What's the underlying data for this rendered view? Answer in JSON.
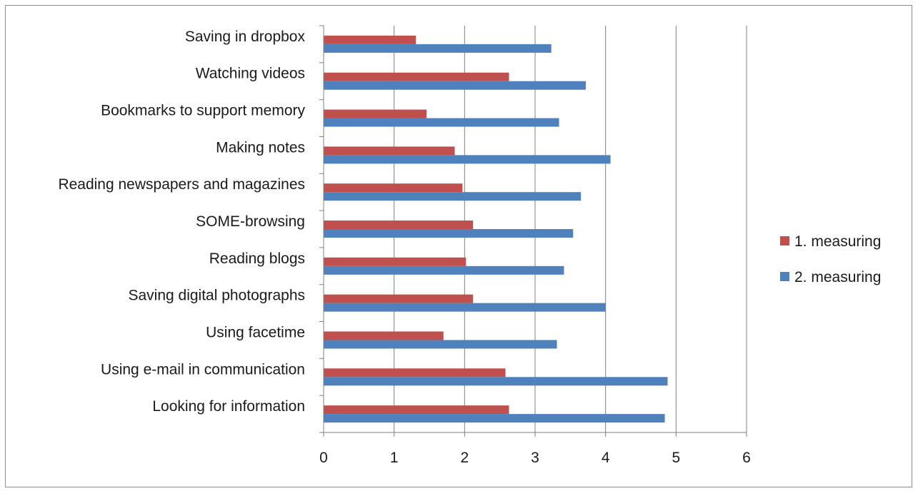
{
  "chart_data": {
    "type": "bar",
    "orientation": "horizontal",
    "categories": [
      "Saving in dropbox",
      "Watching videos",
      "Bookmarks to support memory",
      "Making notes",
      "Reading newspapers and magazines",
      "SOME-browsing",
      "Reading blogs",
      "Saving digital photographs",
      "Using facetime",
      "Using e-mail in communication",
      "Looking for information"
    ],
    "series": [
      {
        "name": "1. measuring",
        "color": "#c0504d",
        "values": [
          1.31,
          2.63,
          1.46,
          1.86,
          1.97,
          2.12,
          2.02,
          2.12,
          1.7,
          2.58,
          2.63
        ]
      },
      {
        "name": "2. measuring",
        "color": "#4f81bd",
        "values": [
          3.23,
          3.72,
          3.34,
          4.07,
          3.65,
          3.54,
          3.41,
          4.0,
          3.31,
          4.88,
          4.84
        ]
      }
    ],
    "xlim": [
      0,
      6
    ],
    "xticks": [
      "0",
      "1",
      "2",
      "3",
      "4",
      "5",
      "6"
    ],
    "grid": true,
    "gridline_color": "#808080",
    "legend_position": "right",
    "title": "",
    "xlabel": "",
    "ylabel": ""
  }
}
